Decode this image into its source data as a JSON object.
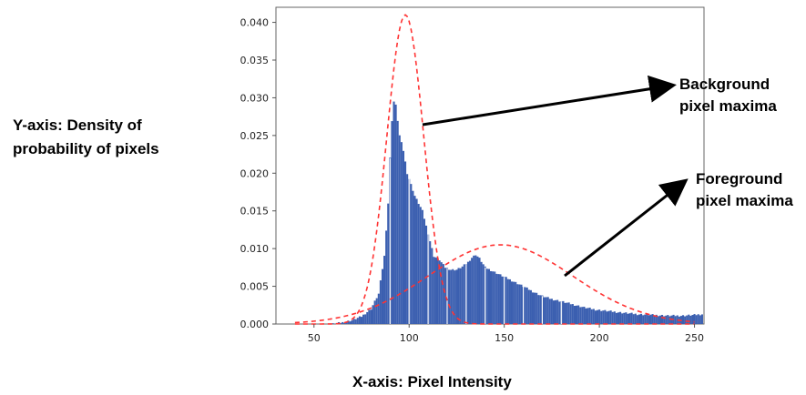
{
  "chart_data": {
    "type": "bar",
    "title": "",
    "xlabel": "X-axis: Pixel Intensity",
    "ylabel": "Y-axis: Density of probability of pixels",
    "xlim": [
      30,
      255
    ],
    "ylim": [
      0,
      0.042
    ],
    "xticks": [
      50,
      100,
      150,
      200,
      250
    ],
    "yticks": [
      0.0,
      0.005,
      0.01,
      0.015,
      0.02,
      0.025,
      0.03,
      0.035,
      0.04
    ],
    "ytick_labels": [
      "0.000",
      "0.005",
      "0.010",
      "0.015",
      "0.020",
      "0.025",
      "0.030",
      "0.035",
      "0.040"
    ],
    "grid": false,
    "bar_color": "#3b5fb0",
    "curve_color": "#ff3333",
    "histogram": {
      "bin_width": 1,
      "points": [
        [
          60,
          0.0
        ],
        [
          65,
          0.0002
        ],
        [
          70,
          0.0005
        ],
        [
          75,
          0.001
        ],
        [
          80,
          0.002
        ],
        [
          84,
          0.004
        ],
        [
          87,
          0.009
        ],
        [
          89,
          0.016
        ],
        [
          90,
          0.022
        ],
        [
          91,
          0.027
        ],
        [
          92,
          0.0295
        ],
        [
          93,
          0.029
        ],
        [
          94,
          0.027
        ],
        [
          95,
          0.025
        ],
        [
          97,
          0.023
        ],
        [
          99,
          0.02
        ],
        [
          101,
          0.0185
        ],
        [
          103,
          0.017
        ],
        [
          105,
          0.016
        ],
        [
          107,
          0.015
        ],
        [
          109,
          0.013
        ],
        [
          111,
          0.011
        ],
        [
          113,
          0.009
        ],
        [
          116,
          0.0085
        ],
        [
          119,
          0.0075
        ],
        [
          122,
          0.0072
        ],
        [
          125,
          0.0072
        ],
        [
          128,
          0.0076
        ],
        [
          131,
          0.0082
        ],
        [
          133,
          0.0088
        ],
        [
          135,
          0.0092
        ],
        [
          137,
          0.0087
        ],
        [
          140,
          0.0075
        ],
        [
          144,
          0.007
        ],
        [
          148,
          0.0065
        ],
        [
          152,
          0.006
        ],
        [
          156,
          0.0055
        ],
        [
          160,
          0.005
        ],
        [
          165,
          0.0043
        ],
        [
          170,
          0.0037
        ],
        [
          175,
          0.0033
        ],
        [
          180,
          0.003
        ],
        [
          186,
          0.0026
        ],
        [
          192,
          0.0022
        ],
        [
          198,
          0.0019
        ],
        [
          205,
          0.0017
        ],
        [
          212,
          0.0015
        ],
        [
          220,
          0.0013
        ],
        [
          228,
          0.0012
        ],
        [
          236,
          0.0011
        ],
        [
          244,
          0.0011
        ],
        [
          250,
          0.0012
        ],
        [
          254,
          0.0013
        ]
      ]
    },
    "series": [
      {
        "name": "Background pixel maxima",
        "kind": "gaussian",
        "mean": 98,
        "std": 9.7,
        "peak": 0.041
      },
      {
        "name": "Foreground pixel maxima",
        "kind": "gaussian",
        "mean": 148,
        "std": 38,
        "peak": 0.0105
      }
    ],
    "annotations": [
      {
        "text_lines": [
          "Background",
          "pixel maxima"
        ],
        "arrow_target": "background-curve"
      },
      {
        "text_lines": [
          "Foreground",
          "pixel maxima"
        ],
        "arrow_target": "foreground-curve"
      }
    ]
  },
  "labels": {
    "y_axis_line1": "Y-axis: Density of",
    "y_axis_line2": "probability of pixels",
    "x_axis": "X-axis: Pixel Intensity",
    "bg_line1": "Background",
    "bg_line2": "pixel maxima",
    "fg_line1": "Foreground",
    "fg_line2": "pixel maxima"
  }
}
